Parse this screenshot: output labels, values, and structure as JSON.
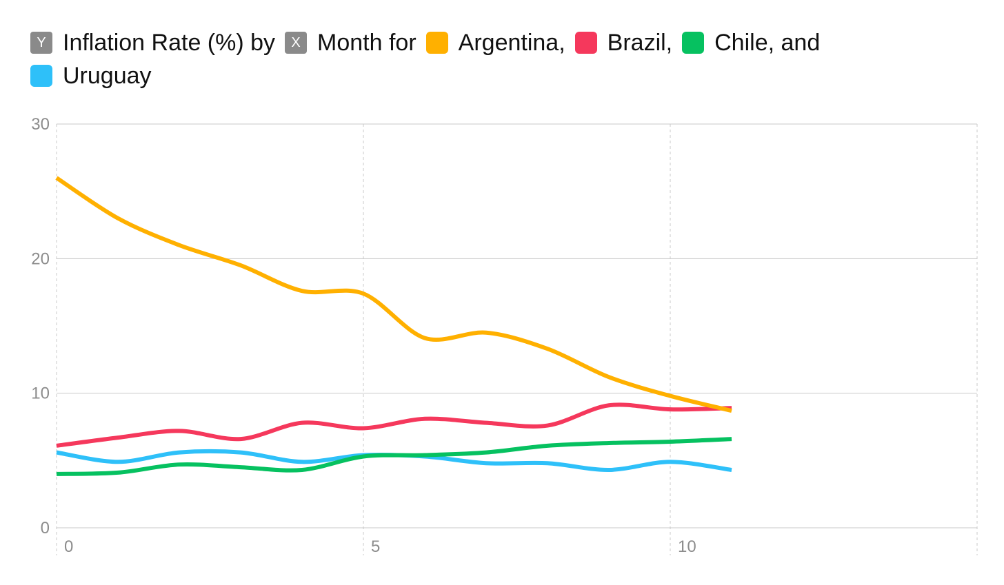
{
  "legend": {
    "y_badge": "Y",
    "y_text": "Inflation Rate (%) by",
    "x_badge": "X",
    "x_text": "Month for",
    "series_labels": [
      "Argentina,",
      "Brazil,",
      "Chile, and",
      "Uruguay"
    ]
  },
  "chart_data": {
    "type": "line",
    "title": "Inflation Rate (%) by Month for Argentina, Brazil, Chile, and Uruguay",
    "xlabel": "Month",
    "ylabel": "Inflation Rate (%)",
    "xlim": [
      0,
      15
    ],
    "ylim": [
      0,
      30
    ],
    "x_ticks": [
      0,
      5,
      10
    ],
    "y_ticks": [
      0,
      10,
      20,
      30
    ],
    "grid": true,
    "legend_position": "top",
    "x": [
      0,
      1,
      2,
      3,
      4,
      5,
      6,
      7,
      8,
      9,
      10,
      11
    ],
    "series": [
      {
        "name": "Argentina",
        "color": "#ffb000",
        "values": [
          26.0,
          23.0,
          21.0,
          19.5,
          17.6,
          17.4,
          14.1,
          14.5,
          13.3,
          11.2,
          9.8,
          8.7
        ]
      },
      {
        "name": "Brazil",
        "color": "#f5385c",
        "values": [
          6.1,
          6.7,
          7.2,
          6.6,
          7.8,
          7.4,
          8.1,
          7.8,
          7.6,
          9.1,
          8.8,
          8.9
        ]
      },
      {
        "name": "Chile",
        "color": "#06c160",
        "values": [
          4.0,
          4.1,
          4.7,
          4.5,
          4.3,
          5.3,
          5.4,
          5.6,
          6.1,
          6.3,
          6.4,
          6.6
        ]
      },
      {
        "name": "Uruguay",
        "color": "#2ec0f9",
        "values": [
          5.6,
          4.9,
          5.6,
          5.6,
          4.9,
          5.4,
          5.3,
          4.8,
          4.8,
          4.3,
          4.9,
          4.3
        ]
      }
    ]
  }
}
